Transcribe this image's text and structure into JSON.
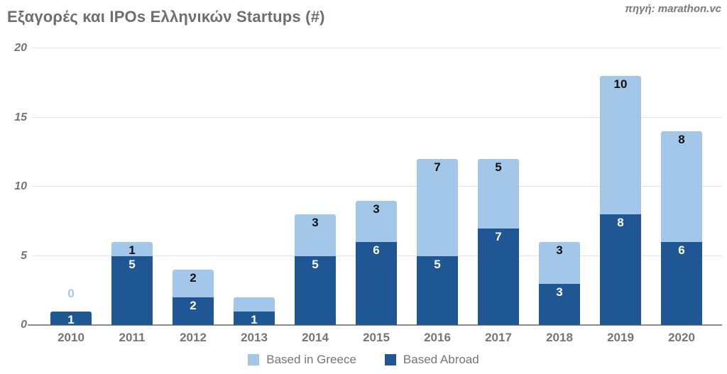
{
  "header": {
    "title": "Εξαγορές και IPOs Ελληνικών Startups (#)",
    "source": "πηγή: marathon.vc"
  },
  "chart_data": {
    "type": "bar",
    "stacked": true,
    "title": "Εξαγορές και IPOs Ελληνικών Startups (#)",
    "source": "πηγή: marathon.vc",
    "categories": [
      "2010",
      "2011",
      "2012",
      "2013",
      "2014",
      "2015",
      "2016",
      "2017",
      "2018",
      "2019",
      "2020"
    ],
    "series": [
      {
        "name": "Based Abroad",
        "color": "#1e5794",
        "label_color": "#ffffff",
        "values": [
          1,
          5,
          2,
          1,
          5,
          6,
          5,
          7,
          3,
          8,
          6
        ],
        "labels": [
          "1",
          "5",
          "2",
          "1",
          "5",
          "6",
          "5",
          "7",
          "3",
          "8",
          "6"
        ]
      },
      {
        "name": "Based in Greece",
        "color": "#a3c7e8",
        "label_color": "#111111",
        "values": [
          0,
          1,
          2,
          1,
          3,
          3,
          7,
          5,
          3,
          10,
          8
        ],
        "labels": [
          "0",
          "1",
          "2",
          "",
          "3",
          "3",
          "7",
          "5",
          "3",
          "10",
          "8"
        ]
      }
    ],
    "totals": [
      1,
      6,
      4,
      2,
      8,
      9,
      12,
      12,
      6,
      18,
      14
    ],
    "ylim": [
      0,
      20
    ],
    "yticks": [
      0,
      5,
      10,
      15,
      20
    ],
    "grid": true,
    "legend_position": "bottom",
    "legend": [
      {
        "label": "Based in Greece",
        "color": "#a3c7e8"
      },
      {
        "label": "Based Abroad",
        "color": "#1e5794"
      }
    ]
  }
}
